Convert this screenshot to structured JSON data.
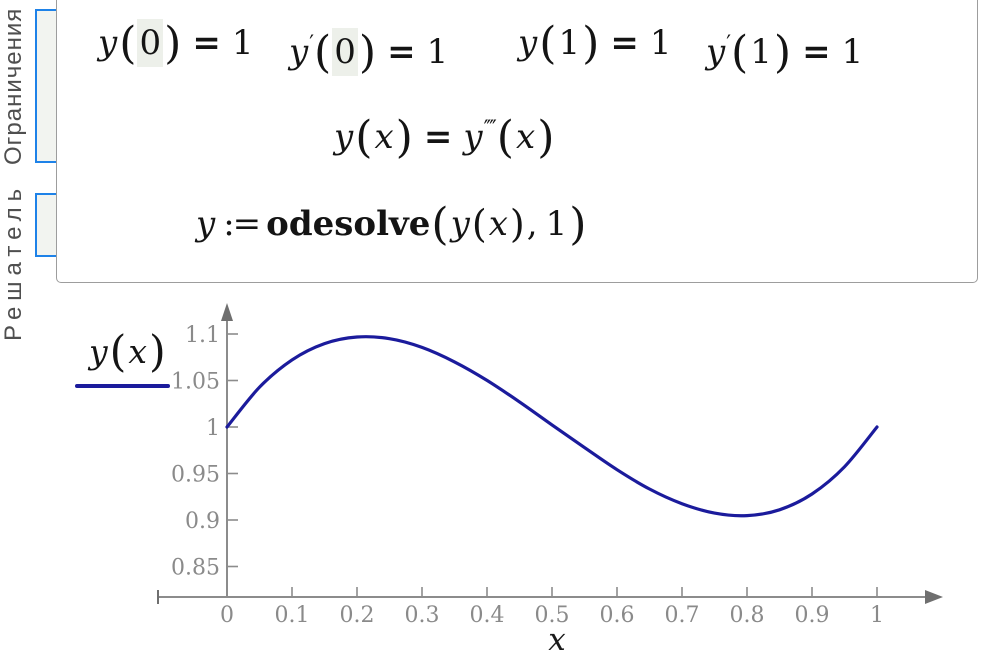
{
  "solve_block": {
    "solver_label": "Решатель",
    "constraints_label": "Ограничения",
    "equations": {
      "bc1": [
        {
          "t": "y",
          "c": "v"
        },
        {
          "t": "(",
          "c": "p"
        },
        {
          "t": "0",
          "c": "hl"
        },
        {
          "t": ")",
          "c": "p"
        },
        {
          "t": "=",
          "c": "b"
        },
        {
          "t": "1",
          "c": "n"
        }
      ],
      "bc2": [
        {
          "t": "y",
          "c": "v"
        },
        {
          "t": "′",
          "c": "pr"
        },
        {
          "t": "(",
          "c": "p"
        },
        {
          "t": "0",
          "c": "hl"
        },
        {
          "t": ")",
          "c": "p"
        },
        {
          "t": "=",
          "c": "b"
        },
        {
          "t": "1",
          "c": "n"
        }
      ],
      "bc3": [
        {
          "t": "y",
          "c": "v"
        },
        {
          "t": "(",
          "c": "p"
        },
        {
          "t": "1",
          "c": "n"
        },
        {
          "t": ")",
          "c": "p"
        },
        {
          "t": "=",
          "c": "b"
        },
        {
          "t": "1",
          "c": "n"
        }
      ],
      "bc4": [
        {
          "t": "y",
          "c": "v"
        },
        {
          "t": "′",
          "c": "pr"
        },
        {
          "t": "(",
          "c": "p"
        },
        {
          "t": "1",
          "c": "n"
        },
        {
          "t": ")",
          "c": "p"
        },
        {
          "t": "=",
          "c": "b"
        },
        {
          "t": "1",
          "c": "n"
        }
      ],
      "ode": [
        {
          "t": "y",
          "c": "v"
        },
        {
          "t": "(",
          "c": "p"
        },
        {
          "t": "x",
          "c": "v"
        },
        {
          "t": ")",
          "c": "p"
        },
        {
          "t": "=",
          "c": "b"
        },
        {
          "t": "y",
          "c": "v"
        },
        {
          "t": "′′′′",
          "c": "pr"
        },
        {
          "t": "(",
          "c": "p"
        },
        {
          "t": "x",
          "c": "v"
        },
        {
          "t": ")",
          "c": "p"
        }
      ],
      "solve": [
        {
          "t": "y",
          "c": "v"
        },
        {
          "t": ":=",
          "c": "asg"
        },
        {
          "t": "odesolve",
          "c": "f"
        },
        {
          "t": "(",
          "c": "p"
        },
        {
          "t": "y",
          "c": "v"
        },
        {
          "t": "(",
          "c": "p2"
        },
        {
          "t": "x",
          "c": "v"
        },
        {
          "t": ")",
          "c": "p2"
        },
        {
          "t": ",",
          "c": "c"
        },
        {
          "t": "1",
          "c": "n"
        },
        {
          "t": ")",
          "c": "p"
        }
      ]
    }
  },
  "chart_data": {
    "type": "line",
    "title": "",
    "xlabel": "x",
    "ylabel": "",
    "legend_name": "y(x)",
    "legend_tokens": [
      {
        "t": "y",
        "c": "v"
      },
      {
        "t": "(",
        "c": "p"
      },
      {
        "t": "x",
        "c": "v"
      },
      {
        "t": ")",
        "c": "p"
      }
    ],
    "legend_position": "left",
    "grid": false,
    "xlim": [
      -0.106,
      1.1
    ],
    "ylim": [
      0.817,
      1.135
    ],
    "x_ticks": [
      "0",
      "0.1",
      "0.2",
      "0.3",
      "0.4",
      "0.5",
      "0.6",
      "0.7",
      "0.8",
      "0.9",
      "1"
    ],
    "x_tick_values": [
      0,
      0.1,
      0.2,
      0.3,
      0.4,
      0.5,
      0.6,
      0.7,
      0.8,
      0.9,
      1
    ],
    "y_ticks": [
      "0.85",
      "0.9",
      "0.95",
      "1",
      "1.05",
      "1.1"
    ],
    "y_tick_values": [
      0.85,
      0.9,
      0.95,
      1,
      1.05,
      1.1
    ],
    "series": [
      {
        "name": "y(x)",
        "x": [
          0,
          0.05,
          0.1,
          0.15,
          0.2,
          0.25,
          0.3,
          0.35,
          0.4,
          0.45,
          0.5,
          0.55,
          0.6,
          0.65,
          0.7,
          0.75,
          0.8,
          0.85,
          0.9,
          0.95,
          1
        ],
        "y": [
          1.0,
          1.0428,
          1.0721,
          1.0897,
          1.0968,
          1.095,
          1.0856,
          1.07,
          1.0501,
          1.027,
          1.0023,
          0.9779,
          0.9541,
          0.9333,
          0.9175,
          0.9074,
          0.9047,
          0.911,
          0.928,
          0.9572,
          1.0
        ]
      }
    ],
    "curve_color": "#1b1b9c",
    "axis_color": "#8c8c8c",
    "arrow_color": "#6f6f6f",
    "tick_label_color": "#8a8a8a",
    "bracket_color": "#1e82e8"
  }
}
